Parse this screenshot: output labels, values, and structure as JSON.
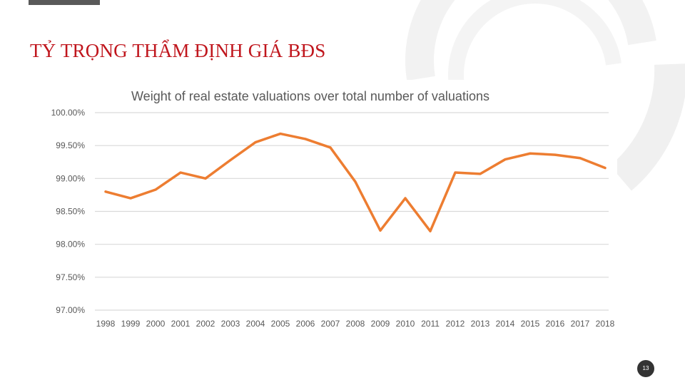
{
  "slide": {
    "title": "TỶ TRỌNG THẨM ĐỊNH GIÁ BĐS",
    "page_number": "13"
  },
  "colors": {
    "title": "#c0161d",
    "series": "#ed7d31",
    "grid": "#d9d9d9",
    "text": "#595959"
  },
  "chart_data": {
    "type": "line",
    "title": "Weight of real estate valuations over total number of valuations",
    "xlabel": "",
    "ylabel": "",
    "categories": [
      "1998",
      "1999",
      "2000",
      "2001",
      "2002",
      "2003",
      "2004",
      "2005",
      "2006",
      "2007",
      "2008",
      "2009",
      "2010",
      "2011",
      "2012",
      "2013",
      "2014",
      "2015",
      "2016",
      "2017",
      "2018"
    ],
    "series": [
      {
        "name": "Weight of real estate valuations",
        "values": [
          98.8,
          98.7,
          98.83,
          99.09,
          99.0,
          99.28,
          99.55,
          99.68,
          99.6,
          99.47,
          98.95,
          98.21,
          98.7,
          98.2,
          99.09,
          99.07,
          99.29,
          99.38,
          99.36,
          99.31,
          99.16
        ]
      }
    ],
    "ylim": [
      97.0,
      100.0
    ],
    "y_ticks": [
      97.0,
      97.5,
      98.0,
      98.5,
      99.0,
      99.5,
      100.0
    ],
    "y_tick_labels": [
      "97.00%",
      "97.50%",
      "98.00%",
      "98.50%",
      "99.00%",
      "99.50%",
      "100.00%"
    ],
    "grid": true,
    "legend": "none"
  }
}
